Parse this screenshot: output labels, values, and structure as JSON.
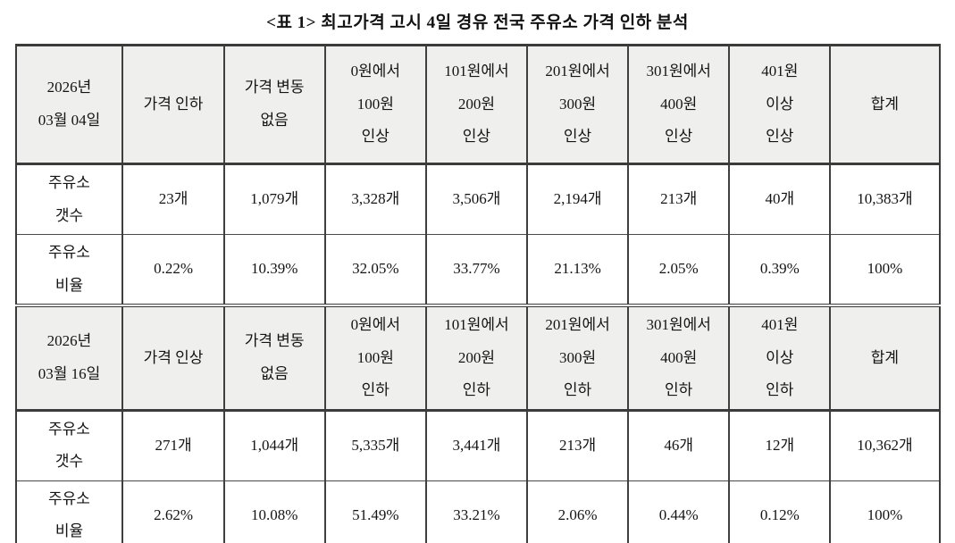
{
  "title": "<표 1> 최고가격 고시 4일 경유 전국 주유소 가격 인하 분석",
  "table": {
    "rows": [
      {
        "type": "header",
        "cells": [
          "2026년\n03월 04일",
          "가격 인하",
          "가격 변동\n없음",
          "0원에서\n100원\n인상",
          "101원에서\n200원\n인상",
          "201원에서\n300원\n인상",
          "301원에서\n400원\n인상",
          "401원\n이상\n인상",
          "합계"
        ]
      },
      {
        "type": "count",
        "cells": [
          "주유소\n갯수",
          "23개",
          "1,079개",
          "3,328개",
          "3,506개",
          "2,194개",
          "213개",
          "40개",
          "10,383개"
        ]
      },
      {
        "type": "ratio",
        "cells": [
          "주유소\n비율",
          "0.22%",
          "10.39%",
          "32.05%",
          "33.77%",
          "21.13%",
          "2.05%",
          "0.39%",
          "100%"
        ]
      },
      {
        "type": "header",
        "cells": [
          "2026년\n03월 16일",
          "가격 인상",
          "가격 변동\n없음",
          "0원에서\n100원\n인하",
          "101원에서\n200원\n인하",
          "201원에서\n300원\n인하",
          "301원에서\n400원\n인하",
          "401원\n이상\n인하",
          "합계"
        ]
      },
      {
        "type": "count",
        "cells": [
          "주유소\n갯수",
          "271개",
          "1,044개",
          "5,335개",
          "3,441개",
          "213개",
          "46개",
          "12개",
          "10,362개"
        ]
      },
      {
        "type": "ratio",
        "cells": [
          "주유소\n비율",
          "2.62%",
          "10.08%",
          "51.49%",
          "33.21%",
          "2.06%",
          "0.44%",
          "0.12%",
          "100%"
        ]
      }
    ]
  }
}
